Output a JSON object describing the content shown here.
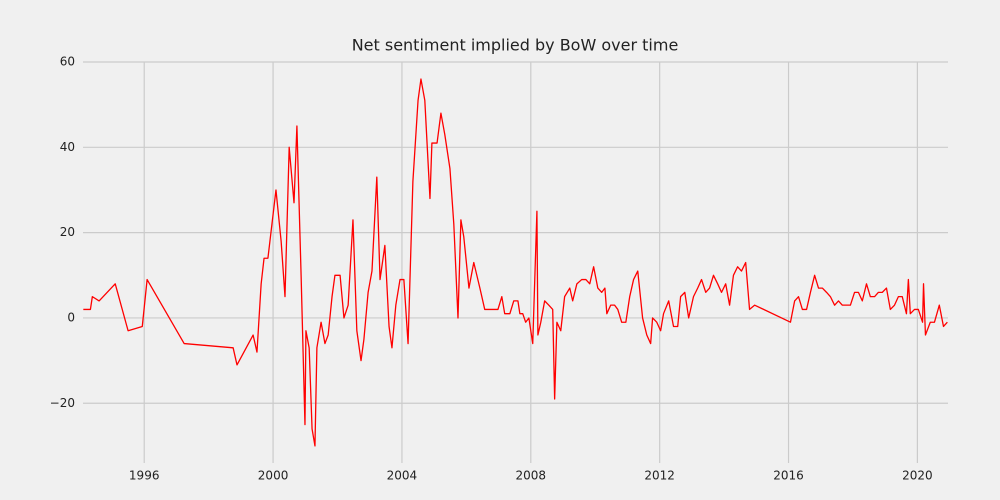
{
  "chart_data": {
    "type": "line",
    "title": "Net sentiment implied by BoW over time",
    "x": [
      1994.11,
      1994.33,
      1994.39,
      1994.6,
      1995.1,
      1995.5,
      1995.94,
      1996.09,
      1997.24,
      1998.76,
      1998.88,
      1999.38,
      1999.5,
      1999.63,
      1999.72,
      1999.84,
      2000.09,
      2000.25,
      2000.37,
      2000.5,
      2000.65,
      2000.74,
      2000.87,
      2000.99,
      2001.02,
      2001.12,
      2001.21,
      2001.3,
      2001.36,
      2001.49,
      2001.61,
      2001.71,
      2001.83,
      2001.92,
      2002.08,
      2002.2,
      2002.33,
      2002.48,
      2002.6,
      2002.73,
      2002.82,
      2002.95,
      2003.07,
      2003.22,
      2003.32,
      2003.47,
      2003.6,
      2003.69,
      2003.81,
      2003.94,
      2004.06,
      2004.19,
      2004.34,
      2004.5,
      2004.59,
      2004.71,
      2004.87,
      2004.93,
      2005.09,
      2005.21,
      2005.33,
      2005.49,
      2005.61,
      2005.74,
      2005.83,
      2005.92,
      2006.08,
      2006.23,
      2006.42,
      2006.57,
      2006.85,
      2006.98,
      2007.1,
      2007.19,
      2007.35,
      2007.47,
      2007.6,
      2007.66,
      2007.75,
      2007.84,
      2007.94,
      2008.06,
      2008.19,
      2008.22,
      2008.31,
      2008.43,
      2008.56,
      2008.68,
      2008.74,
      2008.81,
      2008.93,
      2009.05,
      2009.21,
      2009.3,
      2009.43,
      2009.58,
      2009.71,
      2009.83,
      2009.95,
      2010.08,
      2010.2,
      2010.3,
      2010.36,
      2010.48,
      2010.6,
      2010.7,
      2010.82,
      2010.95,
      2011.07,
      2011.19,
      2011.32,
      2011.47,
      2011.6,
      2011.72,
      2011.78,
      2011.91,
      2012.03,
      2012.12,
      2012.28,
      2012.43,
      2012.56,
      2012.65,
      2012.78,
      2012.9,
      2013.05,
      2013.18,
      2013.3,
      2013.43,
      2013.55,
      2013.67,
      2013.8,
      2013.92,
      2014.05,
      2014.17,
      2014.29,
      2014.42,
      2014.54,
      2014.67,
      2014.79,
      2014.95,
      2016.06,
      2016.19,
      2016.31,
      2016.43,
      2016.56,
      2016.68,
      2016.81,
      2016.93,
      2017.05,
      2017.18,
      2017.3,
      2017.43,
      2017.55,
      2017.67,
      2017.8,
      2017.92,
      2018.05,
      2018.17,
      2018.29,
      2018.42,
      2018.54,
      2018.67,
      2018.79,
      2018.91,
      2019.04,
      2019.16,
      2019.29,
      2019.41,
      2019.53,
      2019.66,
      2019.72,
      2019.78,
      2019.91,
      2020.03,
      2020.16,
      2020.19,
      2020.25,
      2020.4,
      2020.53,
      2020.68,
      2020.81,
      2020.93
    ],
    "series": [
      {
        "color": "#ff0000",
        "values": [
          2,
          2,
          5,
          4,
          8,
          -3,
          -2,
          9,
          -6,
          -7,
          -11,
          -4,
          -8,
          8,
          14,
          14,
          30,
          18,
          5,
          40,
          27,
          45,
          10,
          -25,
          -3,
          -7,
          -26,
          -30,
          -7,
          -1,
          -6,
          -4,
          5,
          10,
          10,
          0,
          3,
          23,
          -3,
          -10,
          -5,
          6,
          11,
          33,
          9,
          17,
          -2,
          -7,
          3,
          9,
          9,
          -6,
          32,
          51,
          56,
          51,
          28,
          41,
          41,
          48,
          43,
          35,
          22,
          0,
          23,
          19,
          7,
          13,
          7,
          2,
          2,
          2,
          5,
          1,
          1,
          4,
          4,
          1,
          1,
          -1,
          0,
          -6,
          25,
          -4,
          -1,
          4,
          3,
          2,
          -19,
          -1,
          -3,
          5,
          7,
          4,
          8,
          9,
          9,
          8,
          12,
          7,
          6,
          7,
          1,
          3,
          3,
          2,
          -1,
          -1,
          5,
          9,
          11,
          0,
          -4,
          -6,
          0,
          -1,
          -3,
          1,
          4,
          -2,
          -2,
          5,
          6,
          0,
          5,
          7,
          9,
          6,
          7,
          10,
          8,
          6,
          8,
          3,
          10,
          12,
          11,
          13,
          2,
          3,
          -1,
          4,
          5,
          2,
          2,
          6,
          10,
          7,
          7,
          6,
          5,
          3,
          4,
          3,
          3,
          3,
          6,
          6,
          4,
          8,
          5,
          5,
          6,
          6,
          7,
          2,
          3,
          5,
          5,
          1,
          9,
          1,
          2,
          2,
          -1,
          8,
          -4,
          -1,
          -1,
          3,
          -2,
          -1
        ]
      }
    ],
    "xlim": [
      1994.1,
      2020.95
    ],
    "xticks": [
      1996,
      2000,
      2004,
      2008,
      2012,
      2016,
      2020
    ],
    "ylim": [
      -34,
      60
    ],
    "yticks": [
      {
        "value": -20,
        "label": "−20"
      },
      0,
      20,
      40,
      60
    ],
    "grid": true
  }
}
